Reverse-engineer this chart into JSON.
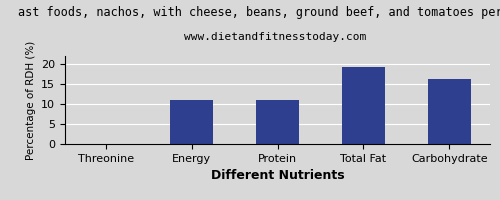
{
  "title": "ast foods, nachos, with cheese, beans, ground beef, and tomatoes per 100",
  "subtitle": "www.dietandfitnesstoday.com",
  "categories": [
    "Threonine",
    "Energy",
    "Protein",
    "Total Fat",
    "Carbohydrate"
  ],
  "values": [
    0,
    11,
    11,
    19.2,
    16.2
  ],
  "bar_color": "#2e3f8f",
  "xlabel": "Different Nutrients",
  "ylabel": "Percentage of RDH (%)",
  "ylim": [
    0,
    22
  ],
  "yticks": [
    0,
    5,
    10,
    15,
    20
  ],
  "title_fontsize": 8.5,
  "subtitle_fontsize": 8,
  "xlabel_fontsize": 9,
  "ylabel_fontsize": 7.5,
  "tick_fontsize": 8,
  "background_color": "#d8d8d8"
}
